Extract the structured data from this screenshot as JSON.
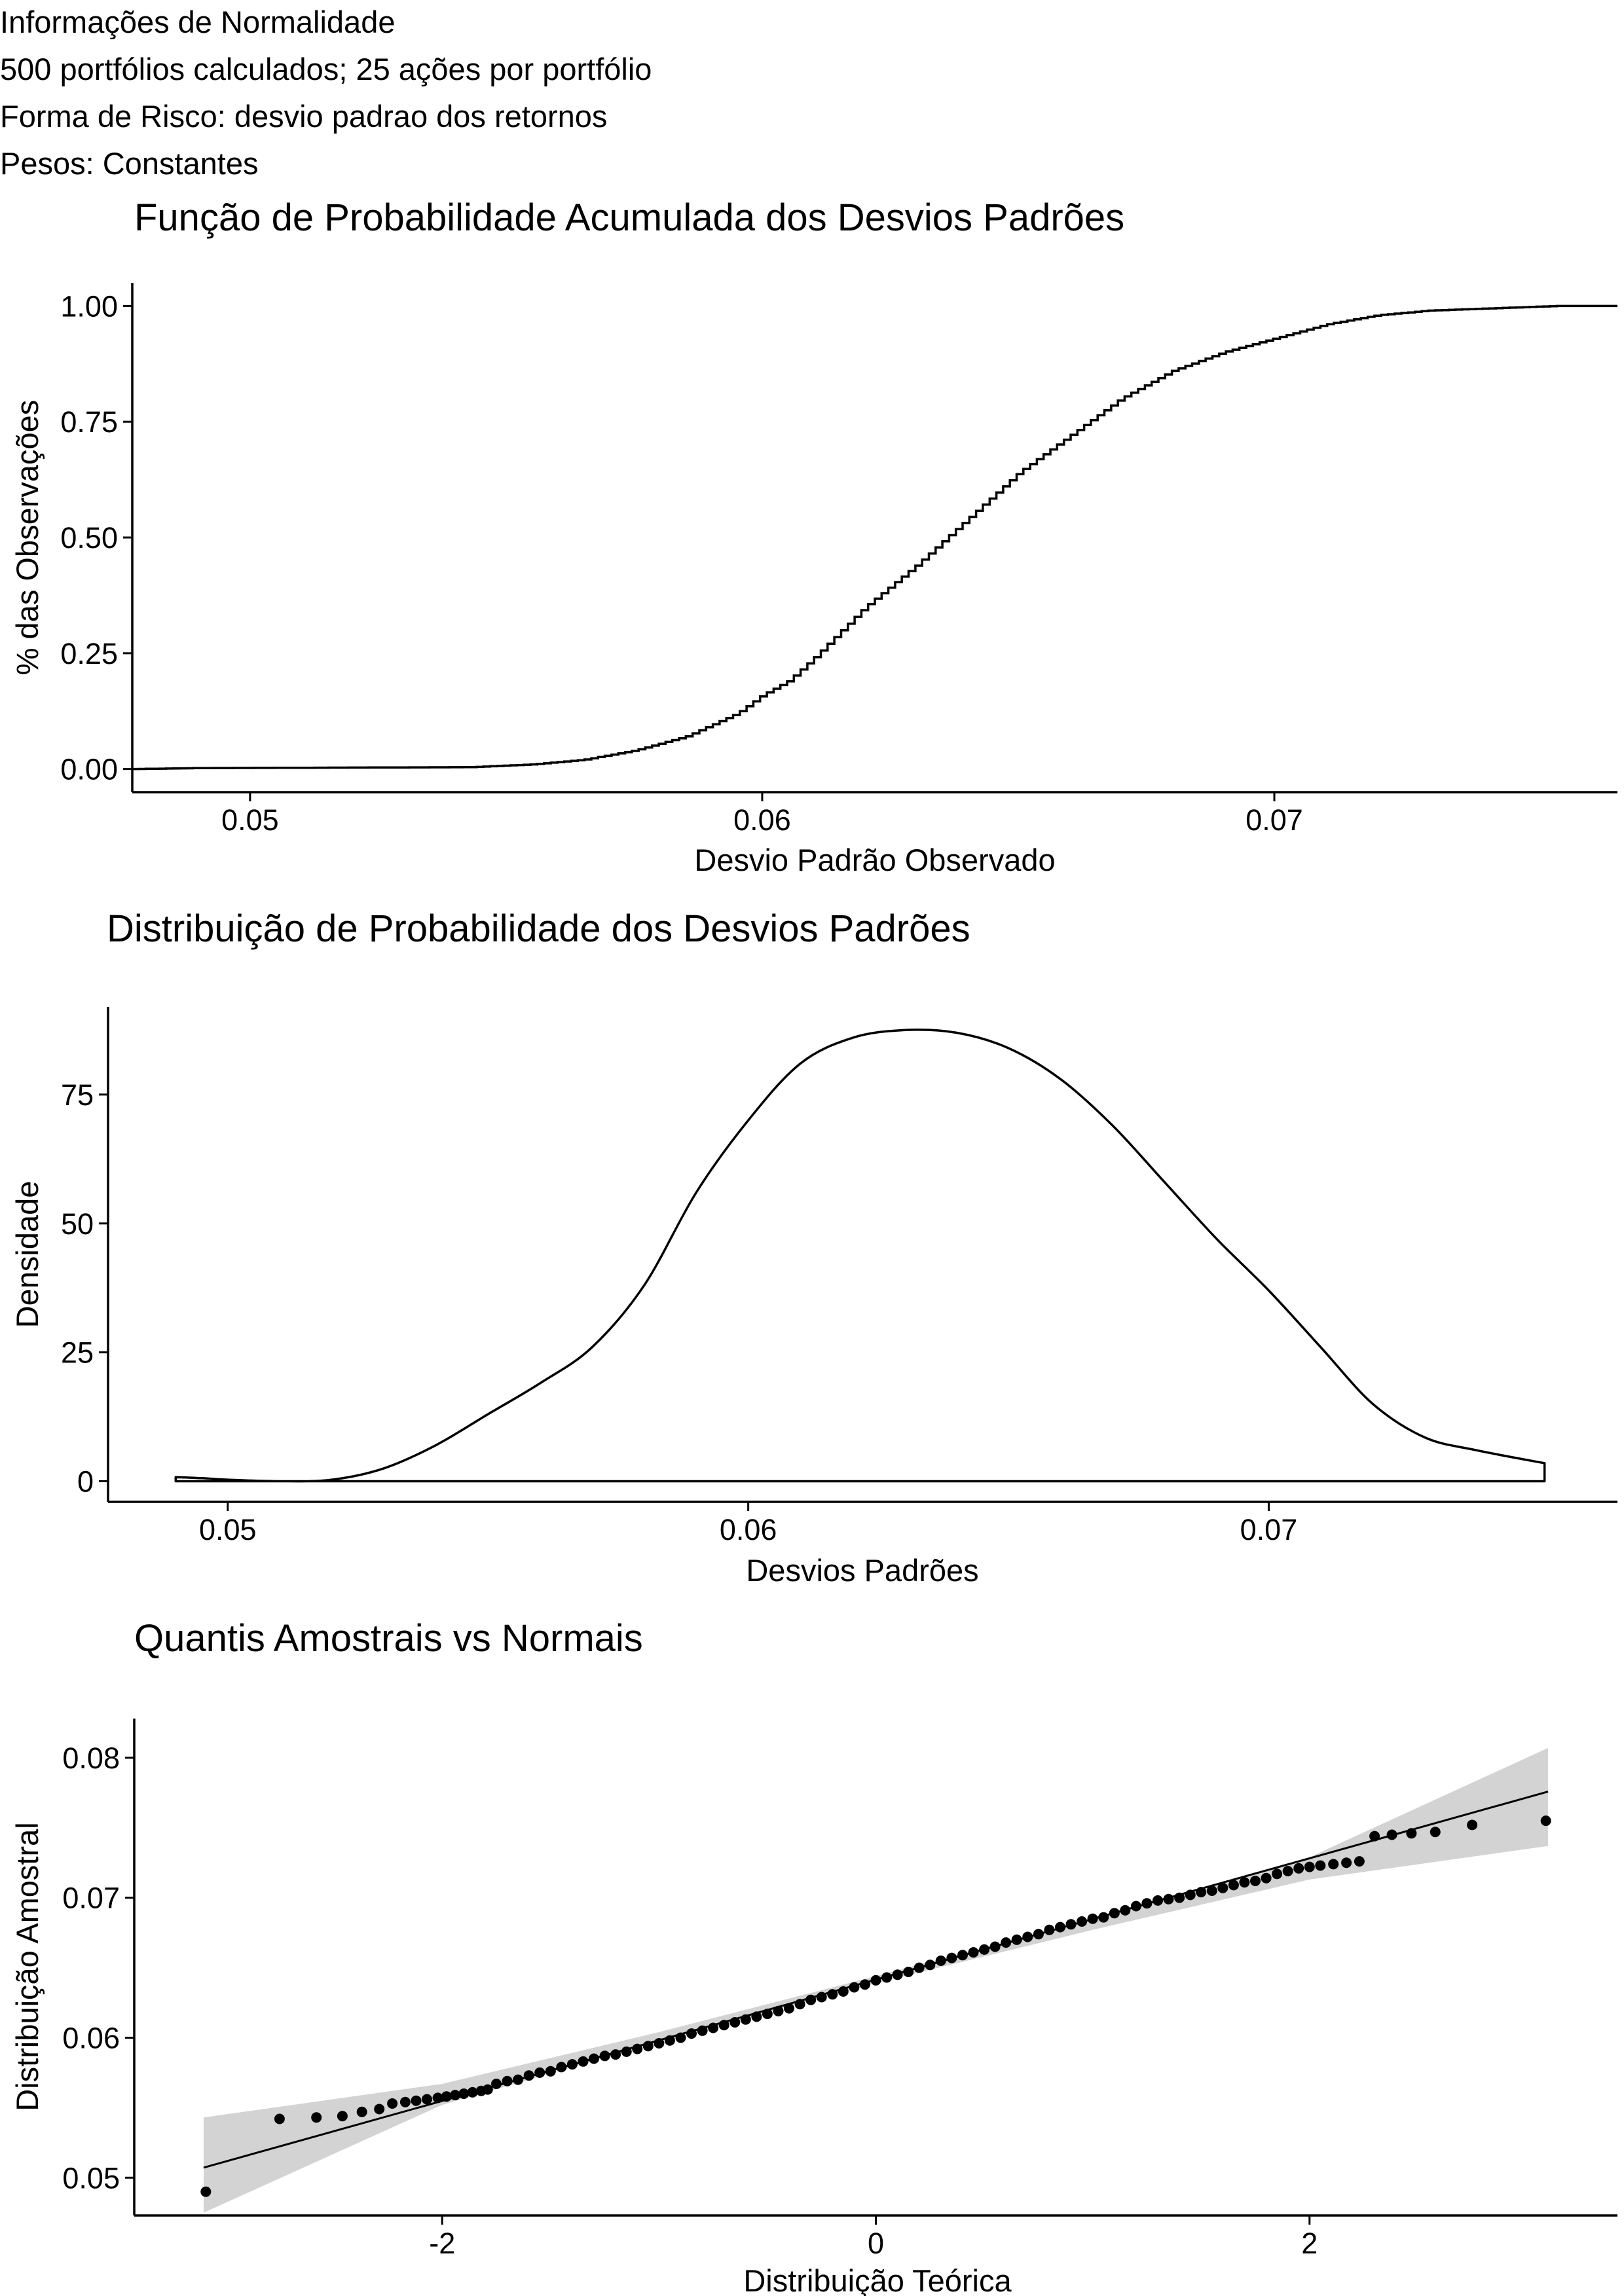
{
  "info": {
    "line1": "Informações de Normalidade",
    "line2": "500 portfólios calculados; 25 ações por portfólio",
    "line3": "Forma de Risco: desvio padrao dos retornos",
    "line4": "Pesos: Constantes"
  },
  "chart_data": [
    {
      "type": "line",
      "subtype": "ecdf-step",
      "title": "Função de Probabilidade Acumulada dos Desvios Padrões",
      "xlabel": "Desvio Padrão Observado",
      "ylabel": "% das Observações",
      "xlim": [
        0.0477,
        0.0767
      ],
      "ylim": [
        -0.05,
        1.05
      ],
      "xticks": [
        0.05,
        0.06,
        0.07
      ],
      "xtick_labels": [
        "0.05",
        "0.06",
        "0.07"
      ],
      "yticks": [
        0,
        0.25,
        0.5,
        0.75,
        1
      ],
      "ytick_labels": [
        "0.00",
        "0.25",
        "0.50",
        "0.75",
        "1.00"
      ],
      "grid": false,
      "x": [
        0.0477,
        0.049,
        0.0543,
        0.0555,
        0.0565,
        0.0575,
        0.0585,
        0.0595,
        0.06,
        0.0605,
        0.061,
        0.062,
        0.063,
        0.064,
        0.065,
        0.066,
        0.067,
        0.068,
        0.069,
        0.07,
        0.071,
        0.072,
        0.073,
        0.0745,
        0.0755,
        0.0767
      ],
      "y": [
        0.0,
        0.002,
        0.004,
        0.01,
        0.02,
        0.04,
        0.07,
        0.12,
        0.16,
        0.19,
        0.24,
        0.35,
        0.44,
        0.54,
        0.64,
        0.72,
        0.8,
        0.86,
        0.9,
        0.93,
        0.96,
        0.98,
        0.99,
        0.996,
        1.0,
        1.0
      ]
    },
    {
      "type": "area",
      "subtype": "density",
      "title": "Distribuição de Probabilidade dos Desvios Padrões",
      "xlabel": "Desvios Padrões",
      "ylabel": "Densidade",
      "xlim": [
        0.0477,
        0.0767
      ],
      "ylim": [
        -4,
        92
      ],
      "xticks": [
        0.05,
        0.06,
        0.07
      ],
      "xtick_labels": [
        "0.05",
        "0.06",
        "0.07"
      ],
      "yticks": [
        0,
        25,
        50,
        75
      ],
      "ytick_labels": [
        "0",
        "25",
        "50",
        "75"
      ],
      "grid": false,
      "x": [
        0.049,
        0.0495,
        0.05,
        0.051,
        0.052,
        0.053,
        0.054,
        0.055,
        0.056,
        0.057,
        0.058,
        0.059,
        0.06,
        0.061,
        0.062,
        0.063,
        0.064,
        0.065,
        0.066,
        0.067,
        0.068,
        0.069,
        0.07,
        0.071,
        0.072,
        0.073,
        0.074,
        0.0753
      ],
      "y": [
        0.8,
        0.6,
        0.3,
        0.0,
        0.3,
        2.5,
        7,
        13,
        19,
        26,
        38,
        56,
        70,
        81,
        86,
        87.5,
        87,
        84,
        78,
        69,
        58,
        47,
        37,
        26,
        15,
        8.5,
        6,
        3.5
      ]
    },
    {
      "type": "scatter",
      "subtype": "qq-plot",
      "title": "Quantis Amostrais vs Normais",
      "xlabel": "Distribuição Teórica",
      "ylabel": "Distribuição Amostral",
      "xlim": [
        -3.42,
        3.42
      ],
      "ylim": [
        0.0473,
        0.0828
      ],
      "xticks": [
        -2,
        0,
        2
      ],
      "xtick_labels": [
        "-2",
        "0",
        "2"
      ],
      "yticks": [
        0.05,
        0.06,
        0.07,
        0.08
      ],
      "ytick_labels": [
        "0.05",
        "0.06",
        "0.07",
        "0.08"
      ],
      "grid": false,
      "reference_line": {
        "intercept": 0.06415,
        "slope": 0.004333
      },
      "band_upper": [
        [
          -3.1,
          0.0543
        ],
        [
          -2,
          0.0567
        ],
        [
          -1,
          0.0604
        ],
        [
          0,
          0.0644
        ],
        [
          1,
          0.0685
        ],
        [
          2,
          0.0729
        ],
        [
          3.1,
          0.0807
        ]
      ],
      "band_lower": [
        [
          -3.1,
          0.0475
        ],
        [
          -2,
          0.0552
        ],
        [
          -1,
          0.0597
        ],
        [
          0,
          0.0639
        ],
        [
          1,
          0.0677
        ],
        [
          2,
          0.0713
        ],
        [
          3.1,
          0.0737
        ]
      ],
      "points": [
        [
          -3.09,
          0.049
        ],
        [
          -2.75,
          0.0542
        ],
        [
          -2.58,
          0.0543
        ],
        [
          -2.46,
          0.0544
        ],
        [
          -2.37,
          0.0547
        ],
        [
          -2.29,
          0.0549
        ],
        [
          -2.23,
          0.0553
        ],
        [
          -2.17,
          0.0554
        ],
        [
          -2.12,
          0.0555
        ],
        [
          -2.07,
          0.0556
        ],
        [
          -2.02,
          0.0557
        ],
        [
          -1.98,
          0.0558
        ],
        [
          -1.94,
          0.0559
        ],
        [
          -1.9,
          0.056
        ],
        [
          -1.86,
          0.0561
        ],
        [
          -1.82,
          0.0562
        ],
        [
          -1.79,
          0.0563
        ],
        [
          -1.75,
          0.0567
        ],
        [
          -1.7,
          0.0569
        ],
        [
          -1.65,
          0.057
        ],
        [
          -1.6,
          0.0573
        ],
        [
          -1.55,
          0.0575
        ],
        [
          -1.5,
          0.0576
        ],
        [
          -1.45,
          0.0579
        ],
        [
          -1.4,
          0.0581
        ],
        [
          -1.35,
          0.0583
        ],
        [
          -1.3,
          0.0585
        ],
        [
          -1.25,
          0.0587
        ],
        [
          -1.2,
          0.0588
        ],
        [
          -1.15,
          0.059
        ],
        [
          -1.1,
          0.0592
        ],
        [
          -1.05,
          0.0594
        ],
        [
          -1.0,
          0.0596
        ],
        [
          -0.95,
          0.0598
        ],
        [
          -0.9,
          0.06
        ],
        [
          -0.85,
          0.0603
        ],
        [
          -0.8,
          0.0605
        ],
        [
          -0.75,
          0.0607
        ],
        [
          -0.7,
          0.0609
        ],
        [
          -0.65,
          0.0611
        ],
        [
          -0.6,
          0.0613
        ],
        [
          -0.55,
          0.0615
        ],
        [
          -0.5,
          0.0617
        ],
        [
          -0.45,
          0.0619
        ],
        [
          -0.4,
          0.0621
        ],
        [
          -0.35,
          0.0624
        ],
        [
          -0.3,
          0.0627
        ],
        [
          -0.25,
          0.0629
        ],
        [
          -0.2,
          0.0631
        ],
        [
          -0.15,
          0.0633
        ],
        [
          -0.1,
          0.0636
        ],
        [
          -0.05,
          0.0638
        ],
        [
          0.0,
          0.0641
        ],
        [
          0.05,
          0.0643
        ],
        [
          0.1,
          0.0645
        ],
        [
          0.15,
          0.0647
        ],
        [
          0.2,
          0.065
        ],
        [
          0.25,
          0.0652
        ],
        [
          0.3,
          0.0655
        ],
        [
          0.35,
          0.0657
        ],
        [
          0.4,
          0.0659
        ],
        [
          0.45,
          0.0661
        ],
        [
          0.5,
          0.0663
        ],
        [
          0.55,
          0.0665
        ],
        [
          0.6,
          0.0668
        ],
        [
          0.65,
          0.067
        ],
        [
          0.7,
          0.0672
        ],
        [
          0.75,
          0.0674
        ],
        [
          0.8,
          0.0677
        ],
        [
          0.85,
          0.0679
        ],
        [
          0.9,
          0.0681
        ],
        [
          0.95,
          0.0683
        ],
        [
          1.0,
          0.0685
        ],
        [
          1.05,
          0.0686
        ],
        [
          1.1,
          0.0689
        ],
        [
          1.15,
          0.0691
        ],
        [
          1.2,
          0.0694
        ],
        [
          1.25,
          0.0696
        ],
        [
          1.3,
          0.0698
        ],
        [
          1.35,
          0.0699
        ],
        [
          1.4,
          0.07
        ],
        [
          1.45,
          0.0702
        ],
        [
          1.5,
          0.0704
        ],
        [
          1.55,
          0.0705
        ],
        [
          1.6,
          0.0707
        ],
        [
          1.65,
          0.0709
        ],
        [
          1.7,
          0.0711
        ],
        [
          1.75,
          0.0712
        ],
        [
          1.8,
          0.0714
        ],
        [
          1.85,
          0.0717
        ],
        [
          1.9,
          0.0719
        ],
        [
          1.95,
          0.0721
        ],
        [
          2.0,
          0.0722
        ],
        [
          2.05,
          0.0723
        ],
        [
          2.11,
          0.0724
        ],
        [
          2.17,
          0.0725
        ],
        [
          2.23,
          0.0726
        ],
        [
          2.3,
          0.0744
        ],
        [
          2.38,
          0.0745
        ],
        [
          2.47,
          0.0746
        ],
        [
          2.58,
          0.0747
        ],
        [
          2.75,
          0.0752
        ],
        [
          3.09,
          0.0755
        ]
      ]
    }
  ]
}
